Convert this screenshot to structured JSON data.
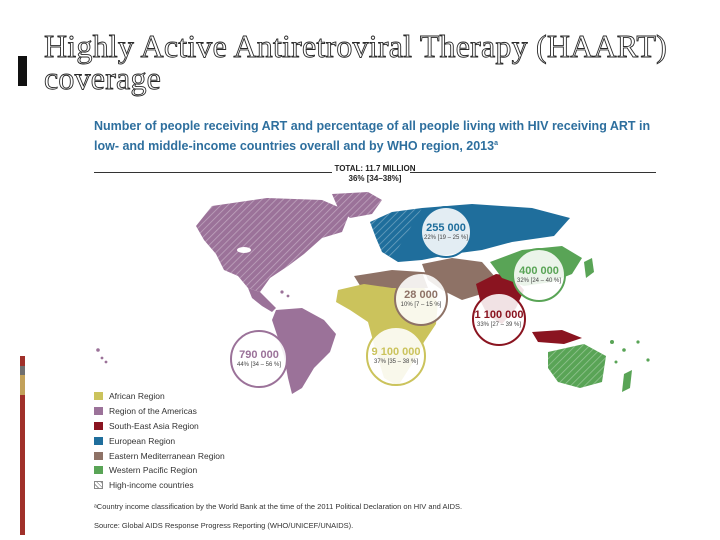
{
  "slide": {
    "title": "Highly Active Antiretroviral Therapy (HAART) coverage"
  },
  "figure": {
    "title": "Number of people receiving ART and percentage of all people living with HIV receiving ART in low- and middle-income countries overall and by WHO region, 2013",
    "title_superscript": "a",
    "total_label": "TOTAL: 11.7 MILLION",
    "total_percent": "36% [34–38%]"
  },
  "regions": [
    {
      "key": "european",
      "label": "European Region",
      "color": "#1f6e9c",
      "count": "255 000",
      "percent": "22% [19 – 25 %]"
    },
    {
      "key": "western_pacific",
      "label": "Western Pacific Region",
      "color": "#59a456",
      "count": "400 000",
      "percent": "32% [24 – 40 %]"
    },
    {
      "key": "eastern_med",
      "label": "Eastern Mediterranean Region",
      "color": "#8e7266",
      "count": "28 000",
      "percent": "10% [7 – 15 %]"
    },
    {
      "key": "sea",
      "label": "South-East Asia Region",
      "color": "#8a1420",
      "count": "1 100 000",
      "percent": "33% [27 – 39 %]"
    },
    {
      "key": "americas",
      "label": "Region of the Americas",
      "color": "#9b7299",
      "count": "790 000",
      "percent": "44% [34 – 56 %]"
    },
    {
      "key": "african",
      "label": "African Region",
      "color": "#cbc35c",
      "count": "9 100 000",
      "percent": "37% [35 – 38 %]"
    }
  ],
  "legend": [
    {
      "label": "African Region",
      "color": "#cbc35c",
      "hatched": false
    },
    {
      "label": "Region of the Americas",
      "color": "#9b7299",
      "hatched": false
    },
    {
      "label": "South-East Asia Region",
      "color": "#8a1420",
      "hatched": false
    },
    {
      "label": "European Region",
      "color": "#1f6e9c",
      "hatched": false
    },
    {
      "label": "Eastern Mediterranean Region",
      "color": "#8e7266",
      "hatched": false
    },
    {
      "label": "Western Pacific Region",
      "color": "#59a456",
      "hatched": false
    },
    {
      "label": "High-income countries",
      "color": "#ffffff",
      "hatched": true
    }
  ],
  "footnotes": {
    "note": "ᵃCountry income classification by the World Bank at the time of the 2011 Political Declaration on HIV and AIDS.",
    "source": "Source: Global AIDS Response Progress Reporting (WHO/UNICEF/UNAIDS)."
  },
  "colors": {
    "accent_bar": "#111111",
    "side_bars": [
      "#a0302a",
      "#6f6f6f",
      "#c2a15a",
      "#a0302a"
    ],
    "title_blue": "#2e6f9e"
  }
}
